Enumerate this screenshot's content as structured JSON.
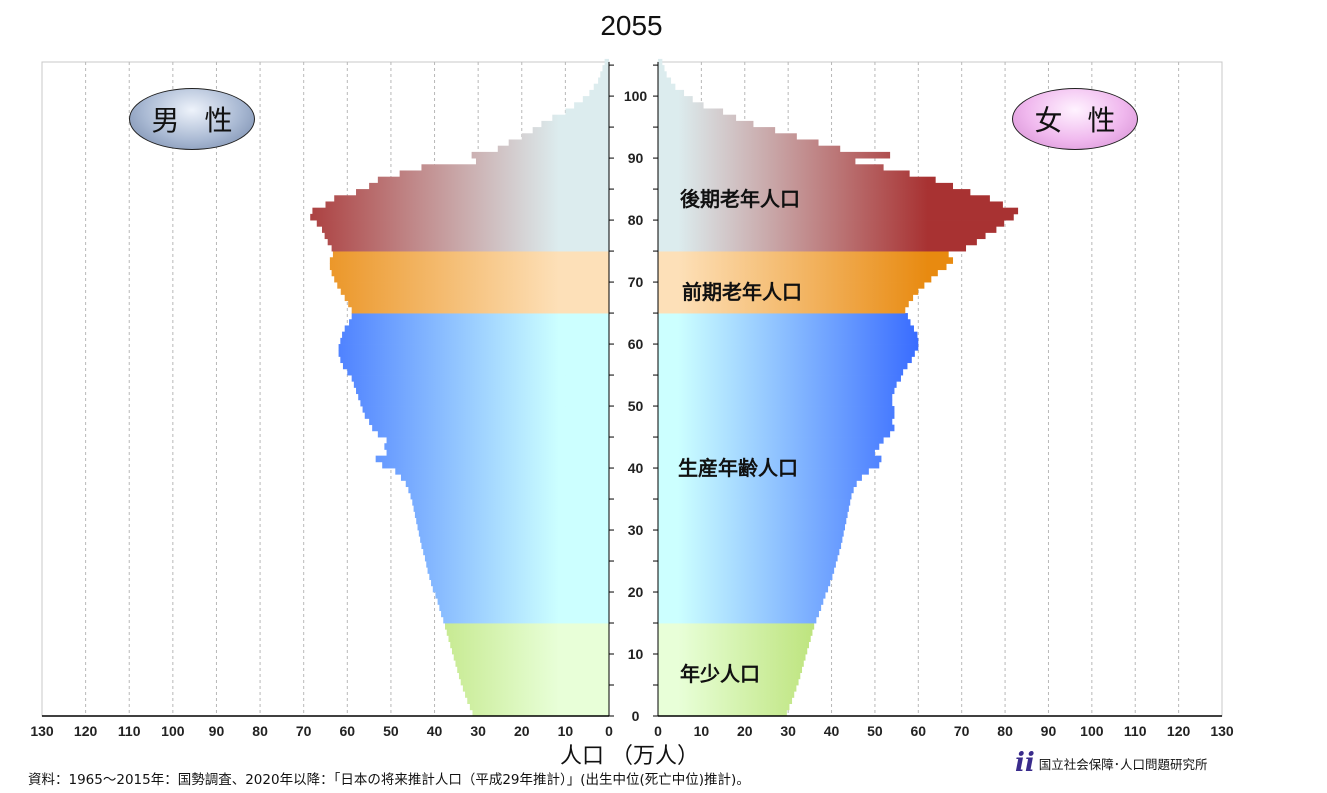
{
  "title": "2055",
  "badges": {
    "male": "男 性",
    "female": "女 性"
  },
  "segment_labels": {
    "late_elderly": "後期老年人口",
    "early_elderly": "前期老年人口",
    "working_age": "生産年齢人口",
    "youth": "年少人口"
  },
  "x_axis_label": "人口 （万人）",
  "source_note": "資料：1965～2015年：国勢調査、2020年以降：「日本の将来推計人口（平成29年推計）」(出生中位(死亡中位)推計)。",
  "organization": "国立社会保障･人口問題研究所",
  "organization_logo": "ii",
  "colors": {
    "youth": "#9acd32",
    "working": "#3366ff",
    "early_elderly": "#e88a10",
    "late_elderly": "#a83232",
    "center_fade": "#ccffff"
  },
  "chart_data": {
    "type": "bar",
    "orientation": "horizontal",
    "subtype": "population_pyramid",
    "x_unit": "万人",
    "xlim": [
      0,
      130
    ],
    "x_ticks": [
      130,
      120,
      110,
      100,
      90,
      80,
      70,
      60,
      50,
      40,
      30,
      20,
      10,
      0
    ],
    "y_ticks": [
      0,
      10,
      20,
      30,
      40,
      50,
      60,
      70,
      80,
      90,
      100
    ],
    "ylim": [
      0,
      105
    ],
    "grid": "vertical dashed",
    "age_groups": [
      {
        "name": "年少人口",
        "range": [
          0,
          14
        ]
      },
      {
        "name": "生産年齢人口",
        "range": [
          15,
          64
        ]
      },
      {
        "name": "前期老年人口",
        "range": [
          65,
          74
        ]
      },
      {
        "name": "後期老年人口",
        "range": [
          75,
          105
        ]
      }
    ],
    "ages": [
      0,
      1,
      2,
      3,
      4,
      5,
      6,
      7,
      8,
      9,
      10,
      11,
      12,
      13,
      14,
      15,
      16,
      17,
      18,
      19,
      20,
      21,
      22,
      23,
      24,
      25,
      26,
      27,
      28,
      29,
      30,
      31,
      32,
      33,
      34,
      35,
      36,
      37,
      38,
      39,
      40,
      41,
      42,
      43,
      44,
      45,
      46,
      47,
      48,
      49,
      50,
      51,
      52,
      53,
      54,
      55,
      56,
      57,
      58,
      59,
      60,
      61,
      62,
      63,
      64,
      65,
      66,
      67,
      68,
      69,
      70,
      71,
      72,
      73,
      74,
      75,
      76,
      77,
      78,
      79,
      80,
      81,
      82,
      83,
      84,
      85,
      86,
      87,
      88,
      89,
      90,
      91,
      92,
      93,
      94,
      95,
      96,
      97,
      98,
      99,
      100,
      101,
      102,
      103,
      104,
      105
    ],
    "series": [
      {
        "name": "男 性",
        "values": [
          31.3,
          31.9,
          32.5,
          33.0,
          33.5,
          34.0,
          34.4,
          34.8,
          35.2,
          35.6,
          36.0,
          36.4,
          36.8,
          37.2,
          37.6,
          38.0,
          38.5,
          38.9,
          39.3,
          39.8,
          40.4,
          40.8,
          41.2,
          41.6,
          41.9,
          42.2,
          42.6,
          43.0,
          43.3,
          43.6,
          43.9,
          44.2,
          44.5,
          44.8,
          45.1,
          45.5,
          46.0,
          46.6,
          47.7,
          49.0,
          52.0,
          53.5,
          51.0,
          51.5,
          51.0,
          53.0,
          54.3,
          55.0,
          56.0,
          56.5,
          57.0,
          57.5,
          58.0,
          58.5,
          59.0,
          60.0,
          61.0,
          61.6,
          62.0,
          62.0,
          61.6,
          61.2,
          60.6,
          59.6,
          59.0,
          59.0,
          59.8,
          60.6,
          61.5,
          62.3,
          63.0,
          63.6,
          64.0,
          64.0,
          63.3,
          63.6,
          64.5,
          65.2,
          65.8,
          67.0,
          68.5,
          68.0,
          65.0,
          63.0,
          58.0,
          55.0,
          53.0,
          48.0,
          43.0,
          30.5,
          31.5,
          25.5,
          23.0,
          20.0,
          17.5,
          15.5,
          13.0,
          10.0,
          8.0,
          6.0,
          4.5,
          3.5,
          2.5,
          2.0,
          1.5,
          1.0
        ]
      },
      {
        "name": "女 性",
        "values": [
          29.7,
          30.3,
          30.9,
          31.4,
          31.9,
          32.4,
          32.8,
          33.2,
          33.6,
          34.0,
          34.4,
          34.8,
          35.2,
          35.6,
          36.0,
          36.5,
          37.1,
          37.6,
          38.1,
          38.6,
          39.2,
          39.7,
          40.2,
          40.6,
          41.0,
          41.4,
          41.8,
          42.2,
          42.5,
          42.8,
          43.1,
          43.4,
          43.7,
          44.0,
          44.3,
          44.6,
          45.1,
          45.8,
          47.0,
          48.6,
          51.0,
          51.5,
          50.0,
          51.0,
          52.0,
          53.5,
          54.5,
          54.0,
          54.5,
          54.5,
          54.0,
          54.0,
          54.5,
          55.0,
          56.0,
          56.5,
          57.5,
          58.5,
          59.2,
          60.0,
          60.0,
          59.8,
          59.0,
          58.2,
          57.6,
          57.0,
          57.8,
          58.8,
          60.0,
          61.4,
          63.0,
          64.5,
          66.5,
          68.0,
          67.0,
          71.0,
          73.5,
          75.5,
          78.0,
          79.8,
          82.0,
          83.0,
          79.5,
          76.5,
          72.0,
          68.0,
          64.0,
          58.0,
          52.0,
          45.5,
          53.5,
          42.0,
          37.0,
          32.0,
          27.0,
          22.0,
          18.0,
          15.0,
          10.5,
          8.0,
          6.0,
          4.0,
          3.0,
          2.0,
          1.5,
          1.0
        ]
      }
    ]
  }
}
